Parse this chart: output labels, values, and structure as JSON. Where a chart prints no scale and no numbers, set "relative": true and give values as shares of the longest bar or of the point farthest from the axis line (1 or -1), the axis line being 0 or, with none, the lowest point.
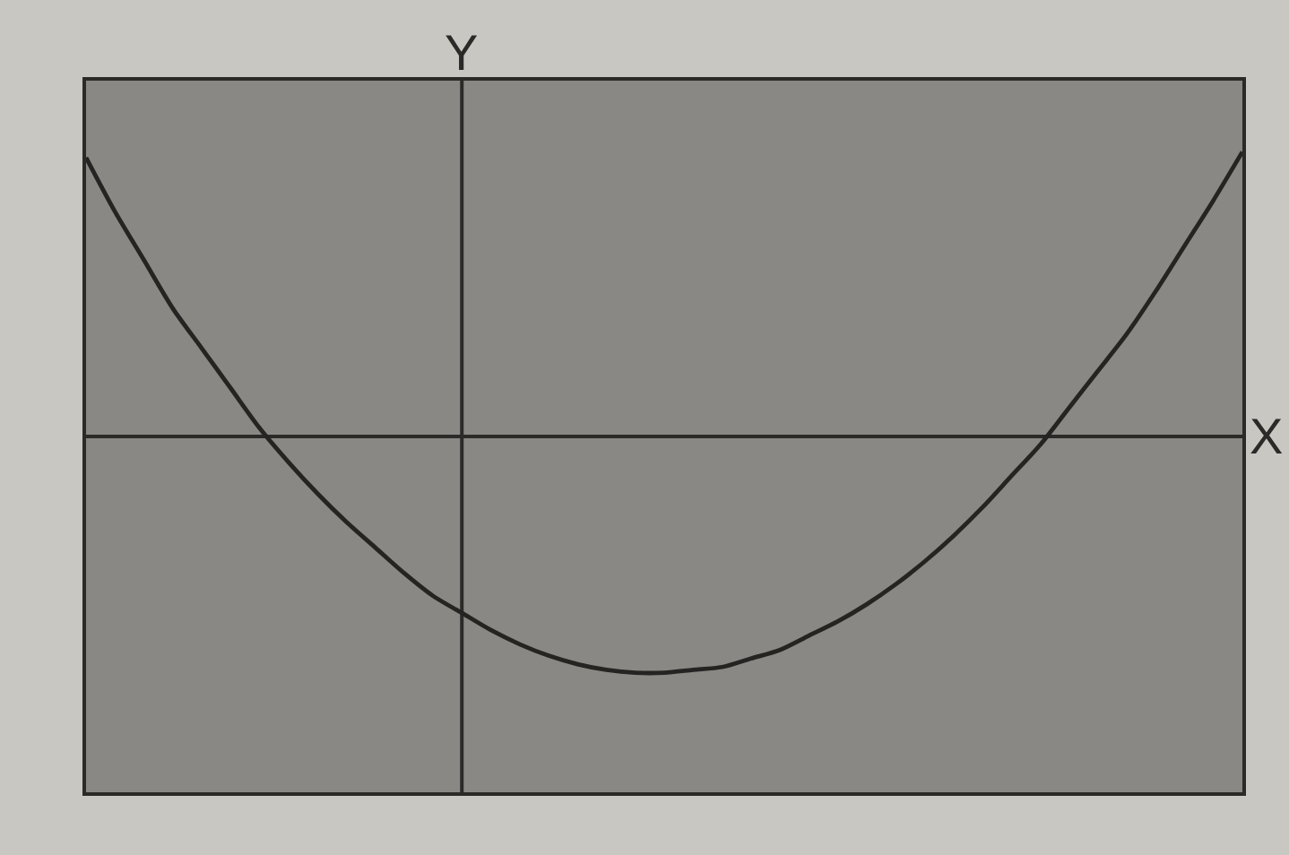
{
  "chart_data": {
    "type": "line",
    "relative": true,
    "xlabel": "X",
    "ylabel": "Y",
    "color": "#262422",
    "categories": [
      null,
      null,
      null,
      null,
      null,
      null,
      null,
      null,
      null,
      null,
      null,
      null,
      null,
      null,
      null,
      null,
      null,
      null,
      null,
      null,
      null,
      null,
      null,
      null,
      null,
      null,
      null,
      null,
      null,
      null,
      null,
      null,
      null,
      null,
      null,
      null,
      null,
      null,
      null,
      null,
      null
    ],
    "values": [
      0.98,
      0.79,
      0.62,
      0.45,
      0.31,
      0.17,
      0.03,
      -0.09,
      -0.2,
      -0.3,
      -0.39,
      -0.48,
      -0.56,
      -0.62,
      -0.68,
      -0.73,
      -0.77,
      -0.8,
      -0.82,
      -0.83,
      -0.83,
      -0.82,
      -0.81,
      -0.78,
      -0.75,
      -0.7,
      -0.65,
      -0.59,
      -0.52,
      -0.44,
      -0.35,
      -0.25,
      -0.14,
      -0.03,
      0.1,
      0.23,
      0.36,
      0.51,
      0.67,
      0.83,
      1
    ]
  }
}
